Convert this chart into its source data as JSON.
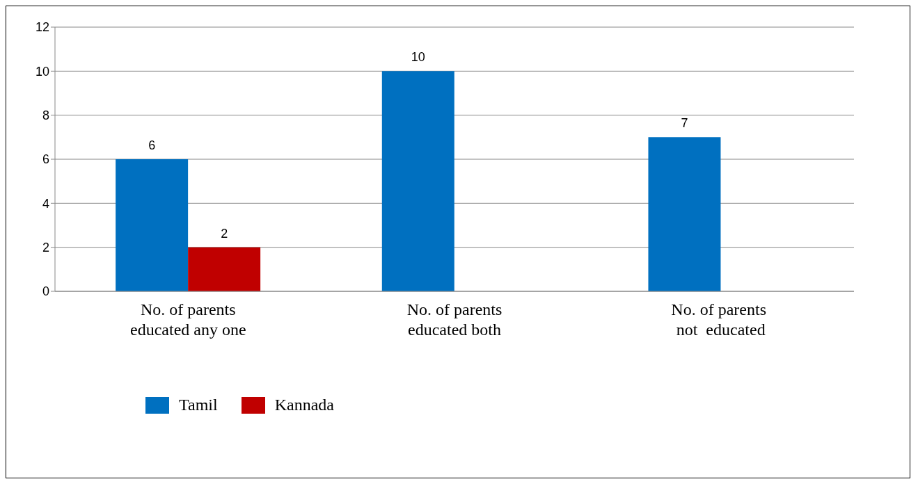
{
  "chart_data": {
    "type": "bar",
    "categories": [
      "No. of parents educated any one",
      "No. of parents educated both",
      "No. of parents  not  educated"
    ],
    "series": [
      {
        "name": "Tamil",
        "color": "#0070c0",
        "values": [
          6,
          10,
          7
        ]
      },
      {
        "name": "Kannada",
        "color": "#c00000",
        "values": [
          2,
          null,
          null
        ]
      }
    ],
    "ylim": [
      0,
      12
    ],
    "yticks": [
      0,
      2,
      4,
      6,
      8,
      10,
      12
    ],
    "grid": "y",
    "data_labels": true,
    "legend": "bottom left"
  }
}
